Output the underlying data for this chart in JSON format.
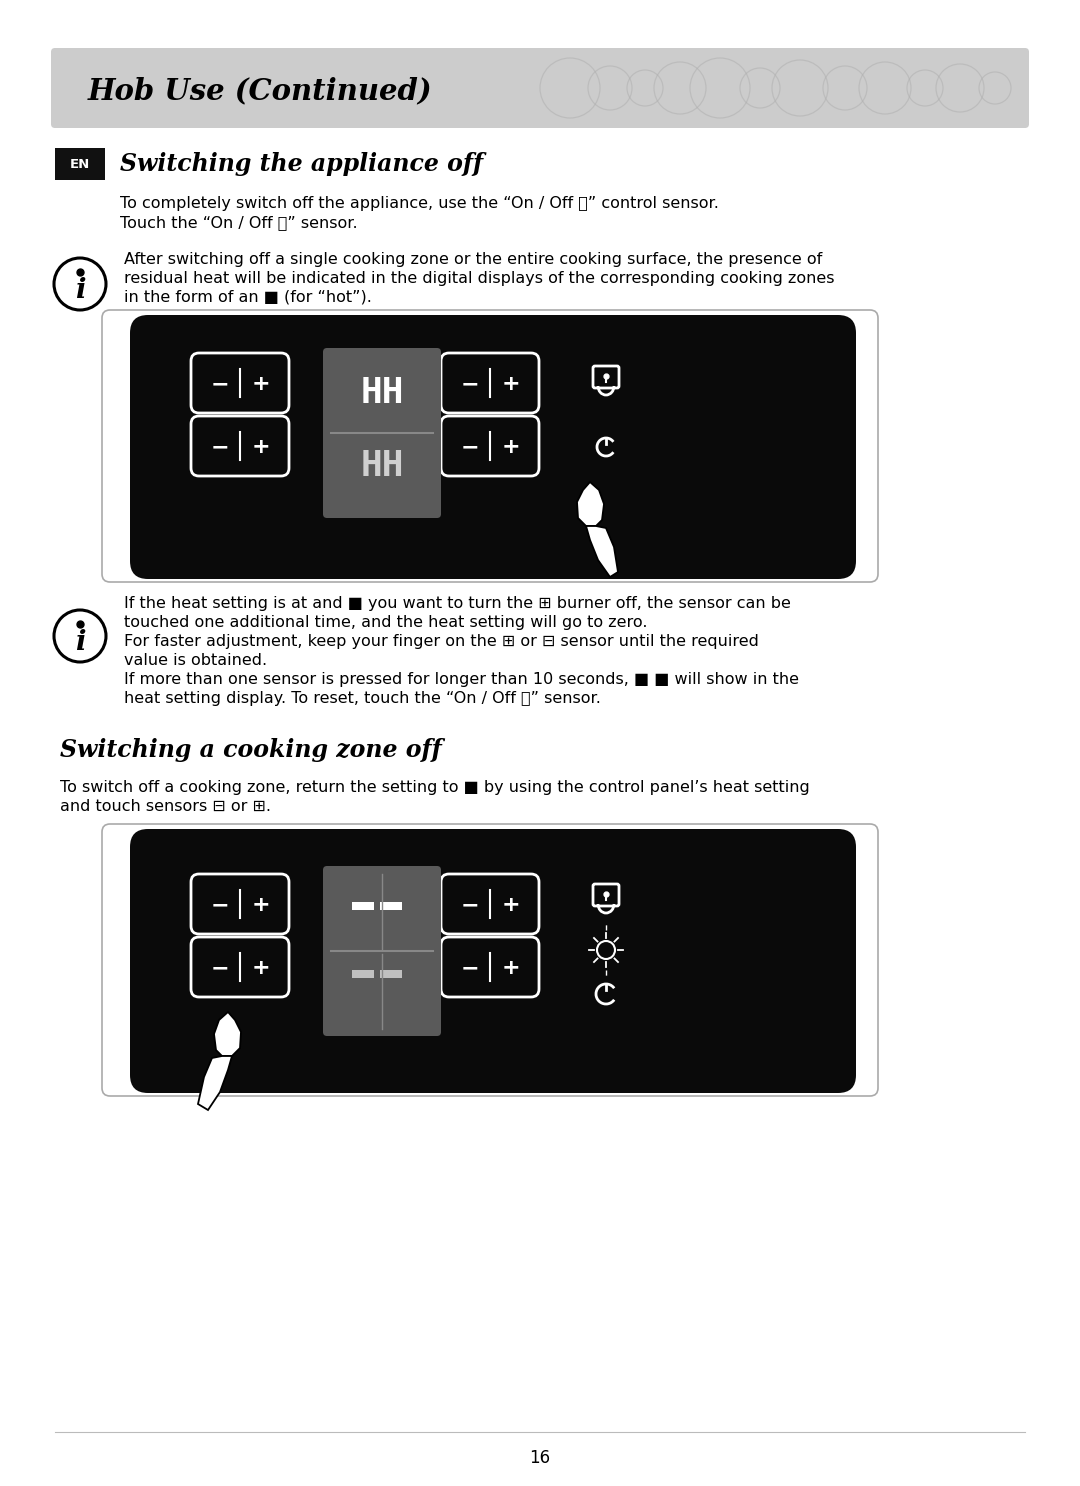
{
  "page_bg": "#ffffff",
  "header_bg": "#cccccc",
  "header_text": "Hob Use (Continued)",
  "panel_bg": "#0a0a0a",
  "display_active": "#606060",
  "display_inactive": "#484848",
  "text_color": "#000000",
  "section1_title": "Switching the appliance off",
  "section2_title": "Switching a cooking zone off",
  "page_number": "16",
  "body1_l1": "To completely switch off the appliance, use the “On / Off ⏻” control sensor.",
  "body1_l2": "Touch the “On / Off ⏻” sensor.",
  "info1_l1": "After switching off a single cooking zone or the entire cooking surface, the presence of",
  "info1_l2": "residual heat will be indicated in the digital displays of the corresponding cooking zones",
  "info1_l3": "in the form of an ■ (for “hot”).",
  "info2_l1": "If the heat setting is at and ■ you want to turn the ⊞ burner off, the sensor can be",
  "info2_l2": "touched one additional time, and the heat setting will go to zero.",
  "info2_l3": "For faster adjustment, keep your finger on the ⊞ or ⊟ sensor until the required",
  "info2_l4": "value is obtained.",
  "info2_l5": "If more than one sensor is pressed for longer than 10 seconds, ■ ■ will show in the",
  "info2_l6": "heat setting display. To reset, touch the “On / Off ⏻” sensor.",
  "body2_l1": "To switch off a cooking zone, return the setting to ■ by using the control panel’s heat setting",
  "body2_l2": "and touch sensors ⊟ or ⊞."
}
